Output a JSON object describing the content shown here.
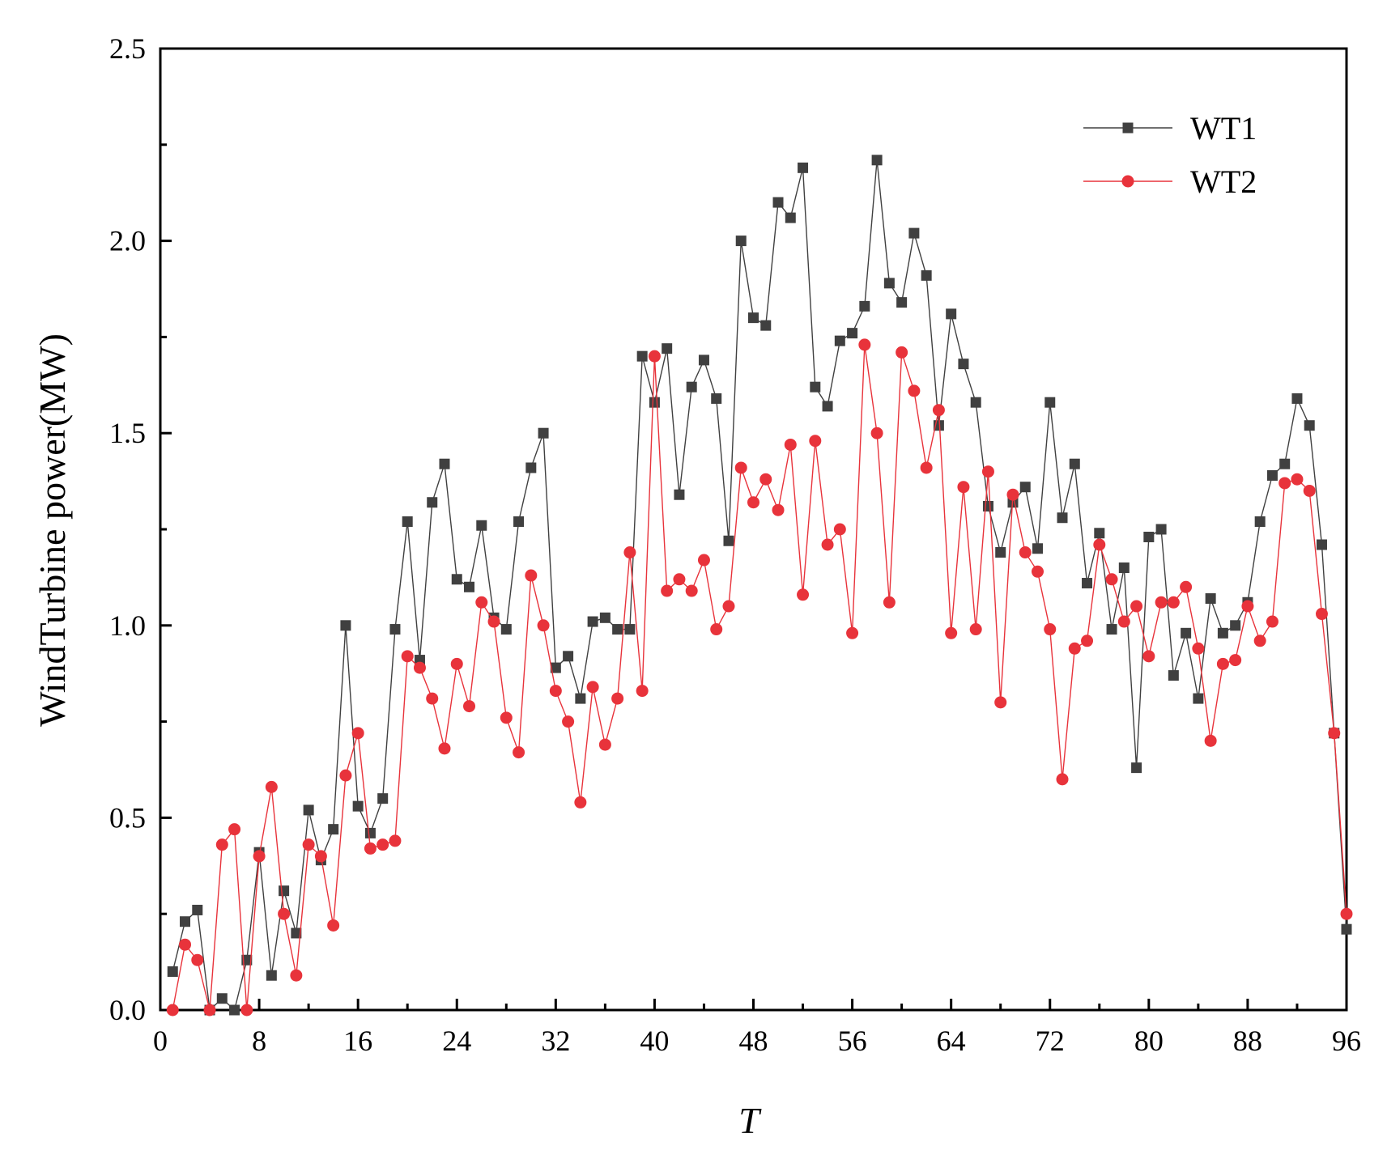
{
  "chart_data": {
    "type": "line",
    "xlabel": "T",
    "ylabel": "WindTurbine power(MW)",
    "xlim": [
      0,
      96
    ],
    "ylim": [
      0,
      2.5
    ],
    "x_ticks": [
      "0",
      "8",
      "16",
      "24",
      "32",
      "40",
      "48",
      "56",
      "64",
      "72",
      "80",
      "88",
      "96"
    ],
    "y_ticks": [
      "0.0",
      "0.5",
      "1.0",
      "1.5",
      "2.0",
      "2.5"
    ],
    "grid": false,
    "legend_position": "top-right",
    "x": [
      1,
      2,
      3,
      4,
      5,
      6,
      7,
      8,
      9,
      10,
      11,
      12,
      13,
      14,
      15,
      16,
      17,
      18,
      19,
      20,
      21,
      22,
      23,
      24,
      25,
      26,
      27,
      28,
      29,
      30,
      31,
      32,
      33,
      34,
      35,
      36,
      37,
      38,
      39,
      40,
      41,
      42,
      43,
      44,
      45,
      46,
      47,
      48,
      49,
      50,
      51,
      52,
      53,
      54,
      55,
      56,
      57,
      58,
      59,
      60,
      61,
      62,
      63,
      64,
      65,
      66,
      67,
      68,
      69,
      70,
      71,
      72,
      73,
      74,
      75,
      76,
      77,
      78,
      79,
      80,
      81,
      82,
      83,
      84,
      85,
      86,
      87,
      88,
      89,
      90,
      91,
      92,
      93,
      94,
      95,
      96
    ],
    "series": [
      {
        "name": "WT1",
        "color": "#404040",
        "marker": "square",
        "values": [
          0.1,
          0.23,
          0.26,
          0.0,
          0.03,
          0.0,
          0.13,
          0.41,
          0.09,
          0.31,
          0.2,
          0.52,
          0.39,
          0.47,
          1.0,
          0.53,
          0.46,
          0.55,
          0.99,
          1.27,
          0.91,
          1.32,
          1.42,
          1.12,
          1.1,
          1.26,
          1.02,
          0.99,
          1.27,
          1.41,
          1.5,
          0.89,
          0.92,
          0.81,
          1.01,
          1.02,
          0.99,
          0.99,
          1.7,
          1.58,
          1.72,
          1.34,
          1.62,
          1.69,
          1.59,
          1.22,
          2.0,
          1.8,
          1.78,
          2.1,
          2.06,
          2.19,
          1.62,
          1.57,
          1.74,
          1.76,
          1.83,
          2.21,
          1.89,
          1.84,
          2.02,
          1.91,
          1.52,
          1.81,
          1.68,
          1.58,
          1.31,
          1.19,
          1.32,
          1.36,
          1.2,
          1.58,
          1.28,
          1.42,
          1.11,
          1.24,
          0.99,
          1.15,
          0.63,
          1.23,
          1.25,
          0.87,
          0.98,
          0.81,
          1.07,
          0.98,
          1.0,
          1.06,
          1.27,
          1.39,
          1.42,
          1.59,
          1.52,
          1.21,
          0.72,
          0.21
        ]
      },
      {
        "name": "WT2",
        "color": "#e8333b",
        "marker": "circle",
        "values": [
          0.0,
          0.17,
          0.13,
          0.0,
          0.43,
          0.47,
          0.0,
          0.4,
          0.58,
          0.25,
          0.09,
          0.43,
          0.4,
          0.22,
          0.61,
          0.72,
          0.42,
          0.43,
          0.44,
          0.92,
          0.89,
          0.81,
          0.68,
          0.9,
          0.79,
          1.06,
          1.01,
          0.76,
          0.67,
          1.13,
          1.0,
          0.83,
          0.75,
          0.54,
          0.84,
          0.69,
          0.81,
          1.19,
          0.83,
          1.7,
          1.09,
          1.12,
          1.09,
          1.17,
          0.99,
          1.05,
          1.41,
          1.32,
          1.38,
          1.3,
          1.47,
          1.08,
          1.48,
          1.21,
          1.25,
          0.98,
          1.73,
          1.5,
          1.06,
          1.71,
          1.61,
          1.41,
          1.56,
          0.98,
          1.36,
          0.99,
          1.4,
          0.8,
          1.34,
          1.19,
          1.14,
          0.99,
          0.6,
          0.94,
          0.96,
          1.21,
          1.12,
          1.01,
          1.05,
          0.92,
          1.06,
          1.06,
          1.1,
          0.94,
          0.7,
          0.9,
          0.91,
          1.05,
          0.96,
          1.01,
          1.37,
          1.38,
          1.35,
          1.03,
          0.72,
          0.25
        ]
      }
    ]
  }
}
